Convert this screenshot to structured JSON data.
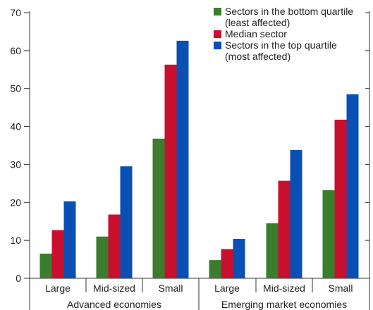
{
  "chart_data": {
    "type": "bar",
    "categories": [
      "Large",
      "Mid-sized",
      "Small",
      "Large",
      "Mid-sized",
      "Small"
    ],
    "groups": [
      {
        "label": "Advanced economies",
        "categories": [
          "Large",
          "Mid-sized",
          "Small"
        ]
      },
      {
        "label": "Emerging market economies",
        "categories": [
          "Large",
          "Mid-sized",
          "Small"
        ]
      }
    ],
    "series": [
      {
        "name": "Sectors in the bottom quartile (least affected)",
        "name_lines": [
          "Sectors in the bottom quartile",
          "(least affected)"
        ],
        "color": "#3a7d2c",
        "values": [
          6.5,
          11,
          36.8,
          4.8,
          14.5,
          23.2
        ]
      },
      {
        "name": "Median sector",
        "name_lines": [
          "Median sector"
        ],
        "color": "#c8102e",
        "values": [
          12.7,
          16.8,
          56.3,
          7.7,
          25.7,
          41.8
        ]
      },
      {
        "name": "Sectors in the top quartile (most affected)",
        "name_lines": [
          "Sectors in the top quartile",
          "(most affected)"
        ],
        "color": "#0a50b4",
        "values": [
          20.3,
          29.5,
          62.6,
          10.4,
          33.8,
          48.5
        ]
      }
    ],
    "ylim": [
      0,
      70
    ],
    "yticks": [
      0,
      10,
      20,
      30,
      40,
      50,
      60,
      70
    ],
    "title": "",
    "xlabel": "",
    "ylabel": "",
    "legend_position": "top-right",
    "grid": false
  }
}
